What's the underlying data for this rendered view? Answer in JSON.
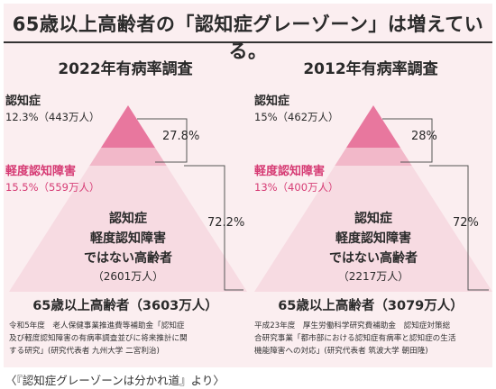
{
  "title": "65歳以上高齢者の「認知症グレーゾーン」は増えている。",
  "caption": "〈『認知症グレーゾーンは分かれ道』より〉",
  "colors": {
    "background": "#fbeef0",
    "dementia": "#e8779e",
    "mci": "#f2b8c9",
    "normal": "#f7dbe2",
    "accent_text": "#d63b74",
    "bracket": "#555555"
  },
  "chart_data": [
    {
      "type": "pyramid",
      "title": "2022年有病率調査",
      "layers": [
        {
          "name": "認知症",
          "share_percent": 12.3,
          "value_label": "12.3%（443万人）",
          "count_man": 443
        },
        {
          "name": "軽度認知障害",
          "share_percent": 15.5,
          "value_label": "15.5%（559万人）",
          "count_man": 559
        },
        {
          "name": "認知症\n軽度認知障害\nではない高齢者",
          "count_label": "（2601万人）",
          "count_man": 2601
        }
      ],
      "brackets": [
        {
          "label": "27.8%",
          "value": 27.8
        },
        {
          "label": "72.2%",
          "value": 72.2
        }
      ],
      "total_label": "65歳以上高齢者（3603万人）",
      "total_man": 3603,
      "source": "令和5年度　老人保健事業推進費等補助金「認知症及び軽度認知障害の有病率調査並びに将来推計に関する研究」(研究代表者 九州大学 二宮利治)"
    },
    {
      "type": "pyramid",
      "title": "2012年有病率調査",
      "layers": [
        {
          "name": "認知症",
          "share_percent": 15,
          "value_label": "15%（462万人）",
          "count_man": 462
        },
        {
          "name": "軽度認知障害",
          "share_percent": 13,
          "value_label": "13%（400万人）",
          "count_man": 400
        },
        {
          "name": "認知症\n軽度認知障害\nではない高齢者",
          "count_label": "（2217万人）",
          "count_man": 2217
        }
      ],
      "brackets": [
        {
          "label": "28%",
          "value": 28
        },
        {
          "label": "72%",
          "value": 72
        }
      ],
      "total_label": "65歳以上高齢者（3079万人）",
      "total_man": 3079,
      "source": "平成23年度　厚生労働科学研究費補助金　認知症対策総合研究事業「都市部における認知症有病率と認知症の生活機能障害への対応」(研究代表者 筑波大学 朝田隆)"
    }
  ]
}
